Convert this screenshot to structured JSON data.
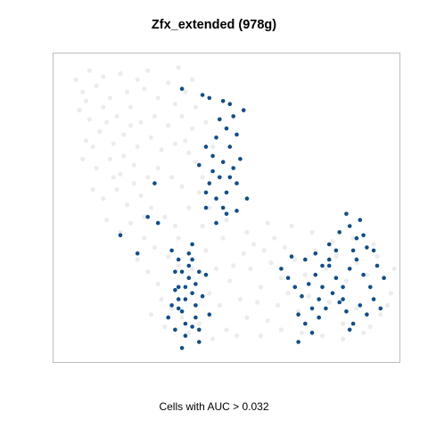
{
  "chart_data": {
    "type": "scatter",
    "title": "Zfx_extended (978g)",
    "caption": "Cells with AUC > 0.032",
    "xlabel": "",
    "ylabel": "",
    "axes_visible": false,
    "grid": false,
    "xlim": [
      0,
      100
    ],
    "ylim": [
      0,
      100
    ],
    "colors": {
      "below_threshold": "#e6e6e6",
      "above_threshold": "#104e8b",
      "frame": "#bdbdbd"
    },
    "series": [
      {
        "values_note": "",
        "point_count": 0,
        "role": "below_threshold",
        "points": [
          [
            10,
            95
          ],
          [
            14,
            93
          ],
          [
            19,
            94
          ],
          [
            24,
            92
          ],
          [
            27,
            95
          ],
          [
            33,
            91
          ],
          [
            36,
            96
          ],
          [
            40,
            92
          ],
          [
            8,
            88
          ],
          [
            12,
            90
          ],
          [
            16,
            86
          ],
          [
            21,
            88
          ],
          [
            26,
            89
          ],
          [
            30,
            86
          ],
          [
            35,
            84
          ],
          [
            38,
            88
          ],
          [
            41,
            83
          ],
          [
            7,
            82
          ],
          [
            10,
            79
          ],
          [
            14,
            83
          ],
          [
            18,
            80
          ],
          [
            22,
            83
          ],
          [
            25,
            78
          ],
          [
            29,
            80
          ],
          [
            33,
            77
          ],
          [
            37,
            80
          ],
          [
            40,
            76
          ],
          [
            9,
            72
          ],
          [
            13,
            75
          ],
          [
            17,
            71
          ],
          [
            20,
            74
          ],
          [
            24,
            70
          ],
          [
            28,
            73
          ],
          [
            31,
            69
          ],
          [
            35,
            71
          ],
          [
            39,
            68
          ],
          [
            8,
            66
          ],
          [
            12,
            63
          ],
          [
            16,
            66
          ],
          [
            19,
            61
          ],
          [
            23,
            64
          ],
          [
            27,
            60
          ],
          [
            30,
            63
          ],
          [
            34,
            60
          ],
          [
            37,
            57
          ],
          [
            11,
            56
          ],
          [
            14,
            53
          ],
          [
            18,
            56
          ],
          [
            21,
            51
          ],
          [
            25,
            54
          ],
          [
            28,
            50
          ],
          [
            32,
            47
          ],
          [
            35,
            44
          ],
          [
            15,
            46
          ],
          [
            19,
            42
          ],
          [
            22,
            45
          ],
          [
            26,
            40
          ],
          [
            29,
            37
          ],
          [
            33,
            34
          ],
          [
            36,
            31
          ],
          [
            24,
            33
          ],
          [
            27,
            29
          ],
          [
            30,
            25
          ],
          [
            31,
            20
          ],
          [
            34,
            17
          ],
          [
            37,
            14
          ],
          [
            28,
            15
          ],
          [
            32,
            11
          ],
          [
            39,
            9
          ],
          [
            42,
            12
          ],
          [
            45,
            22
          ],
          [
            48,
            18
          ],
          [
            51,
            26
          ],
          [
            54,
            20
          ],
          [
            57,
            30
          ],
          [
            60,
            24
          ],
          [
            63,
            32
          ],
          [
            66,
            27
          ],
          [
            70,
            33
          ],
          [
            73,
            28
          ],
          [
            76,
            36
          ],
          [
            79,
            30
          ],
          [
            82,
            34
          ],
          [
            85,
            26
          ],
          [
            88,
            32
          ],
          [
            91,
            28
          ],
          [
            94,
            34
          ],
          [
            96,
            27
          ],
          [
            98,
            22
          ],
          [
            95,
            15
          ],
          [
            92,
            11
          ],
          [
            88,
            17
          ],
          [
            84,
            12
          ],
          [
            80,
            19
          ],
          [
            77,
            14
          ],
          [
            74,
            21
          ],
          [
            71,
            16
          ],
          [
            68,
            22
          ],
          [
            65,
            18
          ],
          [
            62,
            13
          ],
          [
            59,
            19
          ],
          [
            56,
            14
          ],
          [
            52,
            31
          ],
          [
            55,
            35
          ],
          [
            58,
            38
          ],
          [
            61,
            36
          ],
          [
            64,
            40
          ],
          [
            67,
            37
          ],
          [
            47,
            30
          ],
          [
            44,
            36
          ],
          [
            49,
            40
          ],
          [
            43,
            44
          ],
          [
            6,
            92
          ],
          [
            9,
            85
          ],
          [
            15,
            78
          ],
          [
            20,
            67
          ],
          [
            23,
            58
          ],
          [
            26,
            47
          ],
          [
            38,
            72
          ],
          [
            41,
            65
          ],
          [
            44,
            78
          ],
          [
            46,
            70
          ],
          [
            43,
            60
          ],
          [
            39,
            50
          ],
          [
            36,
            40
          ],
          [
            40,
            30
          ],
          [
            46,
            7
          ],
          [
            50,
            10
          ],
          [
            53,
            8
          ],
          [
            60,
            8
          ],
          [
            66,
            10
          ],
          [
            72,
            9
          ],
          [
            78,
            8
          ],
          [
            84,
            7
          ],
          [
            90,
            9
          ],
          [
            97,
            18
          ],
          [
            99,
            30
          ],
          [
            93,
            38
          ],
          [
            87,
            40
          ],
          [
            81,
            39
          ],
          [
            75,
            42
          ],
          [
            69,
            44
          ],
          [
            62,
            45
          ],
          [
            56,
            42
          ],
          [
            50,
            46
          ],
          [
            45,
            50
          ],
          [
            42,
            55
          ],
          [
            11,
            70
          ],
          [
            17,
            60
          ],
          [
            22,
            77
          ]
        ]
      },
      {
        "role": "above_threshold",
        "points": [
          [
            37,
            89
          ],
          [
            43,
            87
          ],
          [
            45,
            86
          ],
          [
            49,
            85
          ],
          [
            51,
            84
          ],
          [
            52,
            80
          ],
          [
            50,
            76
          ],
          [
            53,
            74
          ],
          [
            47,
            73
          ],
          [
            51,
            70
          ],
          [
            46,
            67
          ],
          [
            49,
            65
          ],
          [
            52,
            63
          ],
          [
            48,
            60
          ],
          [
            45,
            58
          ],
          [
            50,
            55
          ],
          [
            47,
            53
          ],
          [
            44,
            55
          ],
          [
            53,
            58
          ],
          [
            54,
            66
          ],
          [
            55,
            82
          ],
          [
            48,
            79
          ],
          [
            44,
            70
          ],
          [
            42,
            64
          ],
          [
            46,
            62
          ],
          [
            51,
            60
          ],
          [
            44,
            50
          ],
          [
            49,
            50
          ],
          [
            53,
            49
          ],
          [
            56,
            53
          ],
          [
            47,
            45
          ],
          [
            50,
            48
          ],
          [
            29,
            58
          ],
          [
            27,
            47
          ],
          [
            30,
            45
          ],
          [
            19,
            41
          ],
          [
            40,
            38
          ],
          [
            36,
            33
          ],
          [
            34,
            36
          ],
          [
            37,
            29
          ],
          [
            36,
            24
          ],
          [
            36,
            20
          ],
          [
            37,
            16
          ],
          [
            38,
            12
          ],
          [
            38,
            8
          ],
          [
            39,
            27
          ],
          [
            40,
            22
          ],
          [
            41,
            18
          ],
          [
            41,
            14
          ],
          [
            42,
            10
          ],
          [
            34,
            18
          ],
          [
            35,
            23
          ],
          [
            39,
            31
          ],
          [
            41,
            25
          ],
          [
            43,
            21
          ],
          [
            45,
            15
          ],
          [
            37,
            4
          ],
          [
            42,
            6
          ],
          [
            33,
            14
          ],
          [
            38,
            20
          ],
          [
            40,
            33
          ],
          [
            44,
            28
          ],
          [
            38,
            24
          ],
          [
            35,
            29
          ],
          [
            42,
            29
          ],
          [
            39,
            35
          ],
          [
            24,
            35
          ],
          [
            36,
            17
          ],
          [
            40,
            11
          ],
          [
            35,
            10
          ],
          [
            68,
            27
          ],
          [
            70,
            24
          ],
          [
            66,
            30
          ],
          [
            72,
            21
          ],
          [
            74,
            25
          ],
          [
            76,
            28
          ],
          [
            78,
            31
          ],
          [
            80,
            33
          ],
          [
            82,
            27
          ],
          [
            84,
            24
          ],
          [
            86,
            30
          ],
          [
            88,
            33
          ],
          [
            90,
            28
          ],
          [
            92,
            24
          ],
          [
            94,
            31
          ],
          [
            96,
            27
          ],
          [
            77,
            20
          ],
          [
            79,
            17
          ],
          [
            81,
            22
          ],
          [
            83,
            19
          ],
          [
            85,
            16
          ],
          [
            87,
            12
          ],
          [
            89,
            18
          ],
          [
            91,
            15
          ],
          [
            93,
            20
          ],
          [
            95,
            17
          ],
          [
            71,
            15
          ],
          [
            73,
            12
          ],
          [
            75,
            9
          ],
          [
            71,
            6
          ],
          [
            77,
            14
          ],
          [
            80,
            38
          ],
          [
            83,
            42
          ],
          [
            86,
            44
          ],
          [
            88,
            40
          ],
          [
            91,
            37
          ],
          [
            89,
            46
          ],
          [
            85,
            48
          ],
          [
            82,
            36
          ],
          [
            80,
            31
          ],
          [
            76,
            35
          ],
          [
            73,
            33
          ],
          [
            69,
            34
          ],
          [
            87,
            36
          ],
          [
            93,
            36
          ],
          [
            90,
            41
          ],
          [
            75,
            17
          ],
          [
            78,
            24
          ],
          [
            84,
            20
          ],
          [
            86,
            10
          ]
        ]
      }
    ]
  }
}
